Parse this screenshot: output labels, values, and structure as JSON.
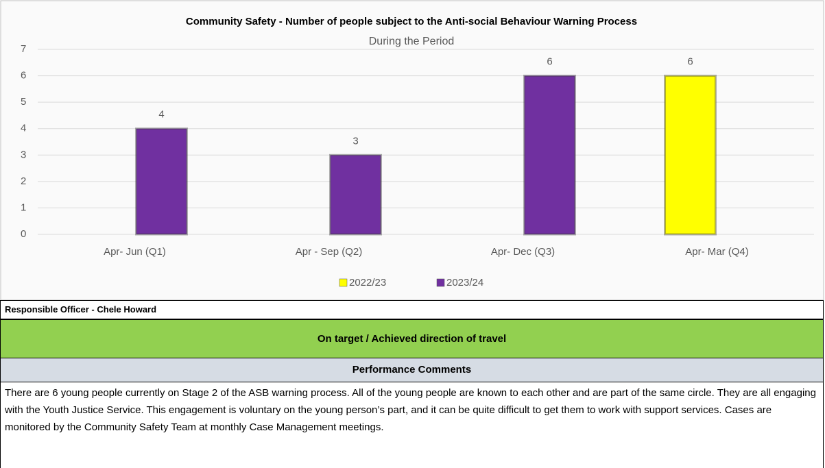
{
  "chart_data": {
    "type": "bar",
    "title": "Community Safety - Number of people subject to the Anti-social Behaviour Warning Process",
    "subtitle": "During the Period",
    "categories": [
      "Apr- Jun  (Q1)",
      "Apr - Sep  (Q2)",
      "Apr- Dec  (Q3)",
      "Apr- Mar  (Q4)"
    ],
    "series": [
      {
        "name": "2022/23",
        "color": "#ffff00",
        "values": [
          null,
          null,
          null,
          6
        ]
      },
      {
        "name": "2023/24",
        "color": "#7030a0",
        "values": [
          4,
          3,
          6,
          null
        ]
      }
    ],
    "ylim": [
      0,
      7
    ],
    "yticks": [
      0,
      1,
      2,
      3,
      4,
      5,
      6,
      7
    ],
    "grid": true,
    "legend": "bottom"
  },
  "officer": "Responsible Officer - Chele Howard",
  "status": "On target / Achieved direction of travel",
  "comments_header": "Performance Comments",
  "comments": "There are 6 young people currently on Stage 2 of the ASB warning process.  All of the young people are known to each other and are part of the same circle.   They are all engaging with the Youth Justice Service.  This engagement is voluntary on the young person’s part, and it can be quite difficult to get them to work with support services.  Cases are monitored by the Community Safety Team at monthly Case Management meetings."
}
